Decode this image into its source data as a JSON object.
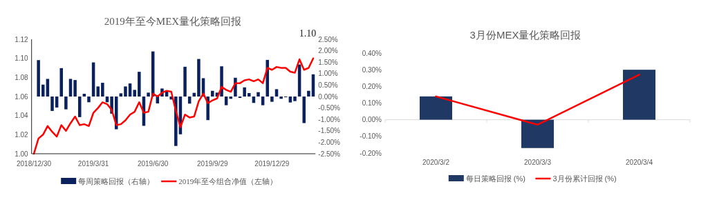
{
  "chart_data": [
    {
      "type": "bar",
      "title": "2019年至今MEX量化策略回报",
      "legend": "bottom",
      "categories": [
        "2018/12/30",
        null,
        null,
        null,
        null,
        null,
        null,
        null,
        null,
        null,
        null,
        null,
        null,
        "2019/3/31",
        null,
        null,
        null,
        null,
        null,
        null,
        null,
        null,
        null,
        null,
        null,
        null,
        "2019/6/30",
        null,
        null,
        null,
        null,
        null,
        null,
        null,
        null,
        null,
        null,
        null,
        null,
        "2019/9/29",
        null,
        null,
        null,
        null,
        null,
        null,
        null,
        null,
        null,
        null,
        null,
        null,
        "2019/12/29",
        null,
        null,
        null,
        null,
        null,
        null,
        null,
        null,
        null
      ],
      "series": [
        {
          "name": "每周策略回报（右轴）",
          "axis": "y2",
          "color": "#0a215e",
          "values": [
            null,
            1.59,
            0.52,
            0.77,
            -0.63,
            -0.48,
            1.24,
            -0.56,
            0.77,
            0.72,
            -0.9,
            0.12,
            -0.25,
            1.49,
            0.44,
            0.6,
            -0.25,
            -0.75,
            -1.43,
            0.14,
            0.44,
            0.57,
            0.29,
            1.08,
            -1.28,
            0.17,
            1.97,
            -0.3,
            0.35,
            0.27,
            -0.13,
            -2.16,
            -1.65,
            1.3,
            -0.31,
            0.16,
            1.64,
            0.8,
            -1.03,
            0.25,
            0.17,
            1.32,
            -0.38,
            -0.1,
            0.82,
            -0.06,
            0.4,
            0.15,
            -0.28,
            0.19,
            -0.38,
            1.6,
            -0.23,
            0.32,
            -0.1,
            -0.03,
            -0.26,
            -0.2,
            1.4,
            -1.16,
            0.25,
            0.97
          ]
        },
        {
          "name": "2019年至今组合净值（左轴）",
          "type": "line",
          "axis": "y",
          "color": "#ff0000",
          "values": [
            1.0,
            1.016,
            1.02,
            1.029,
            1.023,
            1.018,
            1.03,
            1.024,
            1.032,
            1.039,
            1.03,
            1.031,
            1.029,
            1.043,
            1.048,
            1.054,
            1.052,
            1.046,
            1.03,
            1.031,
            1.035,
            1.041,
            1.044,
            1.054,
            1.043,
            1.044,
            1.063,
            1.06,
            1.064,
            1.066,
            1.065,
            1.045,
            1.028,
            1.041,
            1.038,
            1.039,
            1.055,
            1.063,
            1.053,
            1.056,
            1.058,
            1.07,
            1.067,
            1.065,
            1.074,
            1.074,
            1.077,
            1.078,
            1.076,
            1.078,
            1.074,
            1.09,
            1.088,
            1.091,
            1.09,
            1.09,
            1.086,
            1.085,
            1.099,
            1.088,
            1.09,
            1.1
          ]
        }
      ],
      "ylim": [
        1.0,
        1.12
      ],
      "yticks": [
        {
          "value": 1.0,
          "label": "1.00"
        },
        {
          "value": 1.02,
          "label": "1.02"
        },
        {
          "value": 1.04,
          "label": "1.04"
        },
        {
          "value": 1.06,
          "label": "1.06"
        },
        {
          "value": 1.08,
          "label": "1.08"
        },
        {
          "value": 1.1,
          "label": "1.10"
        },
        {
          "value": 1.12,
          "label": "1.12"
        }
      ],
      "y2lim": [
        -2.5,
        2.5
      ],
      "y2ticks": [
        {
          "value": 2.5,
          "label": "2.50%"
        },
        {
          "value": 2,
          "label": "2.00%"
        },
        {
          "value": 1.5,
          "label": "1.50%"
        },
        {
          "value": 1,
          "label": "1.00%"
        },
        {
          "value": 0.5,
          "label": "0.50%"
        },
        {
          "value": 0,
          "label": "0.00%"
        },
        {
          "value": -0.5,
          "label": "-0.50%"
        },
        {
          "value": -1,
          "label": "-1.00%"
        },
        {
          "value": -1.5,
          "label": "-1.50%"
        },
        {
          "value": -2,
          "label": "-2.00%"
        },
        {
          "value": -2.5,
          "label": "-2.50%"
        }
      ],
      "annotations": [
        "1.10"
      ]
    },
    {
      "type": "bar",
      "title": "3月份MEX量化策略回报",
      "legend": "bottom",
      "categories": [
        "2020/3/2",
        "2020/3/3",
        "2020/3/4"
      ],
      "series": [
        {
          "name": "每日策略回报 (%)",
          "color": "#1f3864",
          "values": [
            0.14,
            -0.17,
            0.3
          ]
        },
        {
          "name": "3月份累计回报 (%)",
          "type": "line",
          "color": "#ff0000",
          "values": [
            0.14,
            -0.03,
            0.27
          ]
        }
      ],
      "ylim": [
        -0.2,
        0.4
      ],
      "yticks": [
        {
          "value": -0.2,
          "label": "-0.20%"
        },
        {
          "value": -0.1,
          "label": "-0.10%"
        },
        {
          "value": 0,
          "label": "0.00%"
        },
        {
          "value": 0.1,
          "label": "0.10%"
        },
        {
          "value": 0.2,
          "label": "0.20%"
        },
        {
          "value": 0.3,
          "label": "0.30%"
        },
        {
          "value": 0.4,
          "label": "0.40%"
        }
      ]
    }
  ]
}
